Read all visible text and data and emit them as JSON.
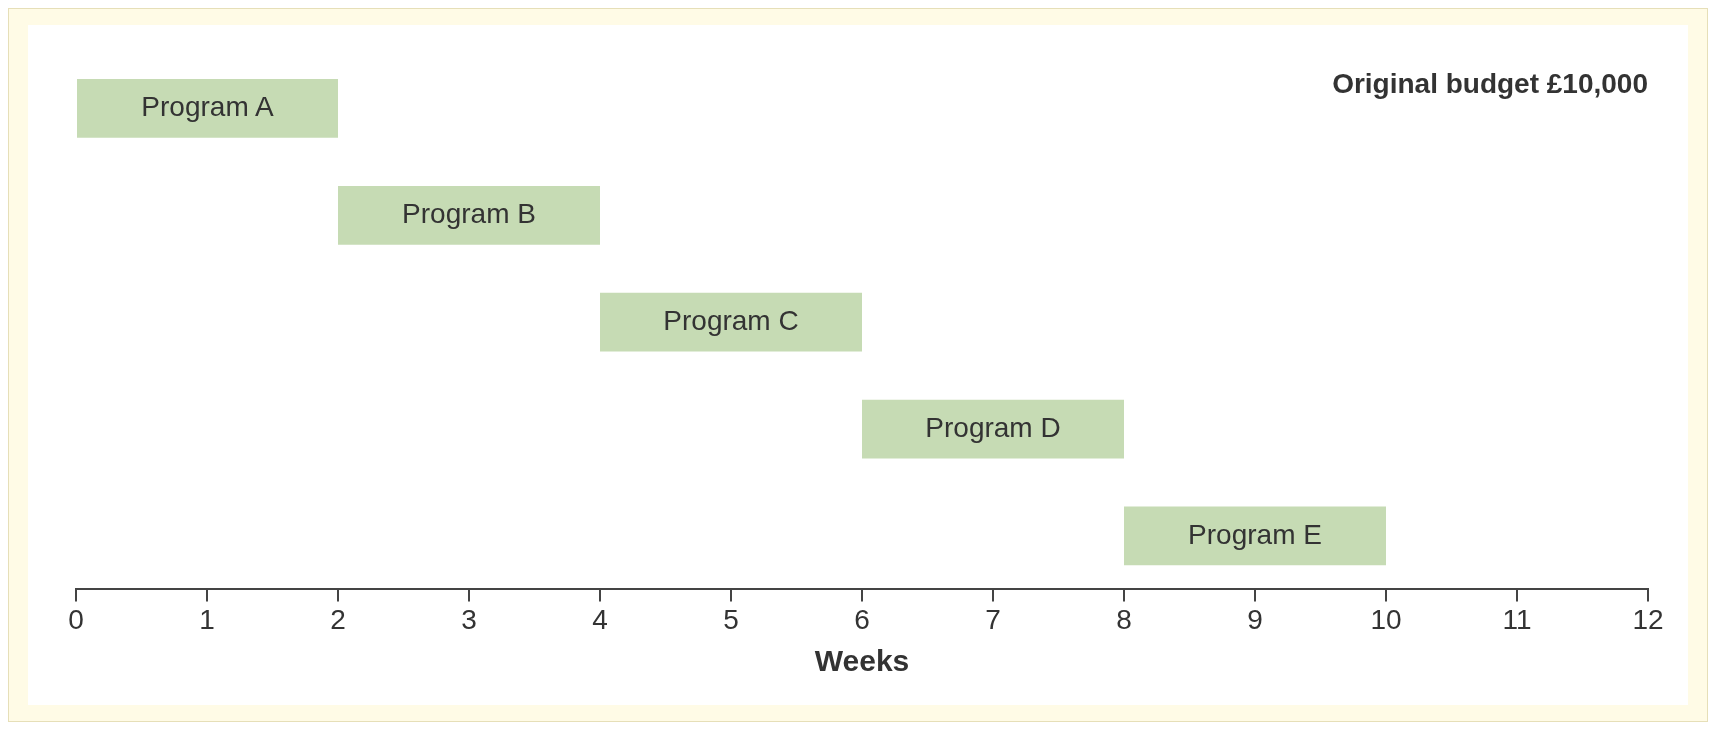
{
  "chart_data": {
    "type": "bar",
    "orientation": "horizontal",
    "tick_labels": "x",
    "categories": [
      "Program A",
      "Program B",
      "Program C",
      "Program D",
      "Program E"
    ],
    "base": [
      0,
      2,
      4,
      6,
      8
    ],
    "values": [
      2,
      2,
      2,
      2,
      2
    ],
    "color": "#c6dbb4",
    "xlim": [
      0,
      12
    ],
    "xticks": [
      0,
      1,
      2,
      3,
      4,
      5,
      6,
      7,
      8,
      9,
      10,
      11,
      12
    ],
    "xlabel": "Weeks",
    "annotations": [
      "Original budget £10,000"
    ],
    "grid": false,
    "legend": false
  }
}
